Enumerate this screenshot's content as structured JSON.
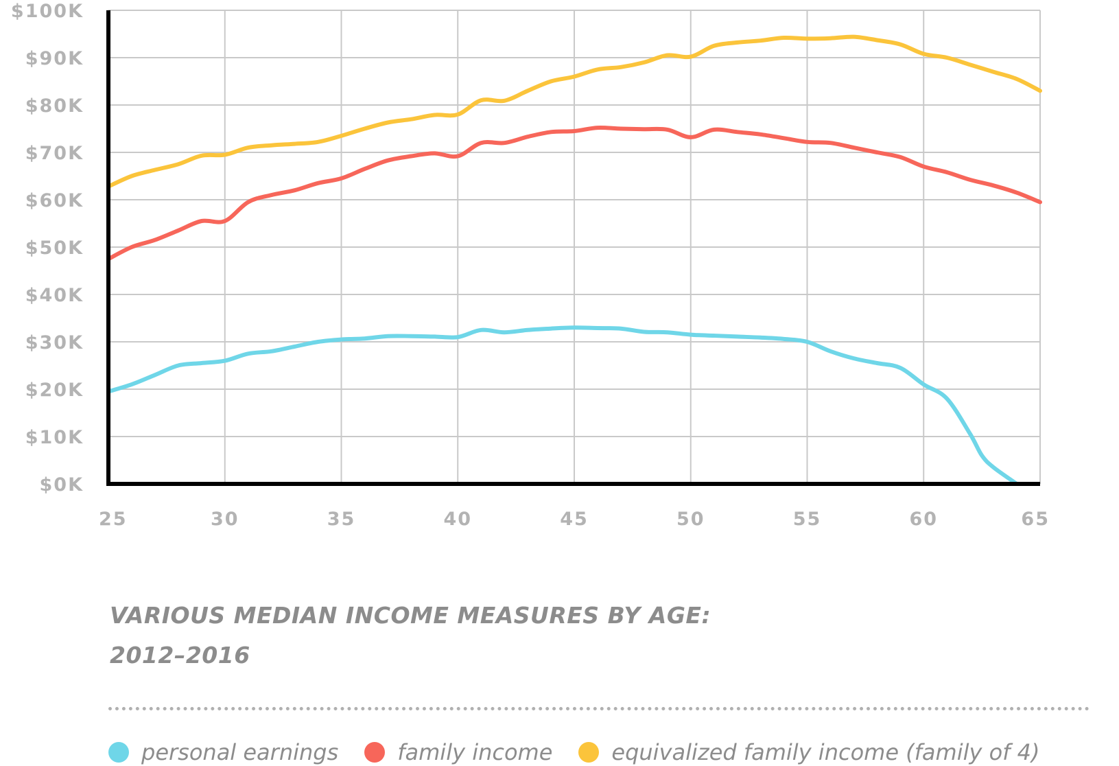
{
  "chart_data": {
    "type": "line",
    "title": "VARIOUS MEDIAN INCOME MEASURES BY AGE:",
    "subtitle": "2012–2016",
    "xlabel": "",
    "ylabel": "",
    "xlim": [
      25,
      65
    ],
    "ylim": [
      0,
      100000
    ],
    "x_ticks": [
      "25",
      "30",
      "35",
      "40",
      "45",
      "50",
      "55",
      "60",
      "65"
    ],
    "y_ticks": [
      "$0K",
      "$10K",
      "$20K",
      "$30K",
      "$40K",
      "$50K",
      "$60K",
      "$70K",
      "$80K",
      "$90K",
      "$100K"
    ],
    "grid": true,
    "legend_position": "bottom",
    "series": [
      {
        "name": "personal earnings",
        "color": "#6fd6e8",
        "x": [
          25,
          26,
          27,
          28,
          29,
          30,
          31,
          32,
          33,
          34,
          35,
          36,
          37,
          38,
          39,
          40,
          41,
          42,
          43,
          44,
          45,
          46,
          47,
          48,
          49,
          50,
          51,
          52,
          53,
          54,
          55,
          56,
          57,
          58,
          59,
          60,
          61,
          62,
          62.5,
          63,
          64
        ],
        "values": [
          19500,
          21000,
          23000,
          25000,
          25500,
          26000,
          27500,
          28000,
          29000,
          30000,
          30500,
          30700,
          31200,
          31200,
          31100,
          31000,
          32500,
          32000,
          32500,
          32800,
          33000,
          32900,
          32800,
          32100,
          32000,
          31500,
          31300,
          31100,
          30900,
          30600,
          30000,
          28000,
          26500,
          25500,
          24500,
          21000,
          18000,
          10500,
          6000,
          3500,
          0
        ]
      },
      {
        "name": "family income",
        "color": "#f7665a",
        "x": [
          25,
          26,
          27,
          28,
          29,
          30,
          31,
          32,
          33,
          34,
          35,
          36,
          37,
          38,
          39,
          40,
          41,
          42,
          43,
          44,
          45,
          46,
          47,
          48,
          49,
          50,
          51,
          52,
          53,
          54,
          55,
          56,
          57,
          58,
          59,
          60,
          61,
          62,
          63,
          64,
          65
        ],
        "values": [
          47500,
          50000,
          51500,
          53500,
          55500,
          55500,
          59500,
          61000,
          62000,
          63500,
          64500,
          66500,
          68300,
          69200,
          69800,
          69200,
          72000,
          72000,
          73300,
          74300,
          74500,
          75200,
          75000,
          74900,
          74800,
          73200,
          74800,
          74300,
          73800,
          73000,
          72200,
          72000,
          71000,
          70000,
          69000,
          67000,
          65800,
          64200,
          63000,
          61500,
          59500
        ]
      },
      {
        "name": "equivalized family income (family of 4)",
        "color": "#fbc43b",
        "x": [
          25,
          26,
          27,
          28,
          29,
          30,
          31,
          32,
          33,
          34,
          35,
          36,
          37,
          38,
          39,
          40,
          41,
          42,
          43,
          44,
          45,
          46,
          47,
          48,
          49,
          50,
          51,
          52,
          53,
          54,
          55,
          56,
          57,
          58,
          59,
          60,
          61,
          62,
          63,
          64,
          65
        ],
        "values": [
          62800,
          65000,
          66300,
          67500,
          69300,
          69500,
          71000,
          71500,
          71800,
          72200,
          73500,
          75000,
          76300,
          77000,
          77900,
          78000,
          81000,
          80900,
          83000,
          85000,
          86000,
          87500,
          88000,
          89000,
          90500,
          90200,
          92500,
          93200,
          93600,
          94200,
          94000,
          94100,
          94400,
          93700,
          92800,
          90800,
          90000,
          88500,
          87000,
          85500,
          83000
        ]
      }
    ]
  }
}
